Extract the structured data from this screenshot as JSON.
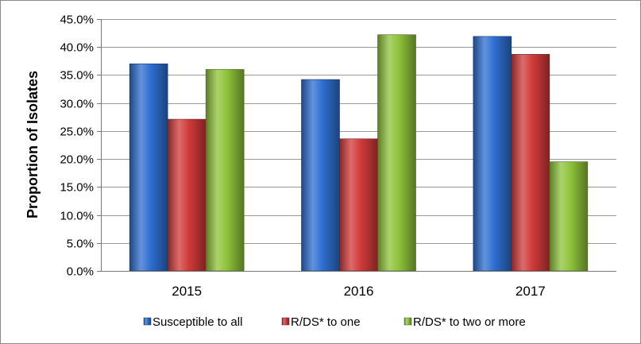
{
  "chart_data": {
    "type": "bar",
    "title": "",
    "xlabel": "",
    "ylabel": "Proportion of Isolates",
    "ylim": [
      0,
      45
    ],
    "y_ticks": [
      "0.0%",
      "5.0%",
      "10.0%",
      "15.0%",
      "20.0%",
      "25.0%",
      "30.0%",
      "35.0%",
      "40.0%",
      "45.0%"
    ],
    "categories": [
      "2015",
      "2016",
      "2017"
    ],
    "series": [
      {
        "name": "Susceptible to all",
        "color": "#2e6fd0",
        "values": [
          37.0,
          34.2,
          41.9
        ]
      },
      {
        "name": "R/DS* to one",
        "color": "#d23a3a",
        "values": [
          27.1,
          23.6,
          38.7
        ]
      },
      {
        "name": "R/DS* to two or more",
        "color": "#8fc33a",
        "values": [
          36.0,
          42.2,
          19.5
        ]
      }
    ],
    "grid": true,
    "legend_position": "bottom"
  }
}
